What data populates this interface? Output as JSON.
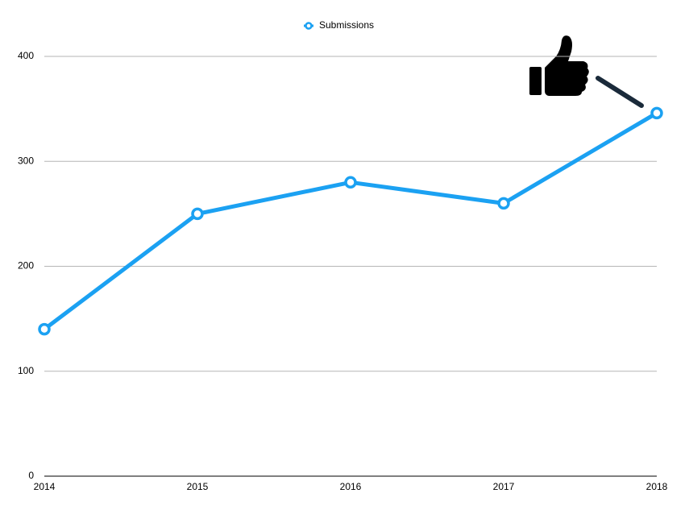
{
  "chart_data": {
    "type": "line",
    "categories": [
      "2014",
      "2015",
      "2016",
      "2017",
      "2018"
    ],
    "series": [
      {
        "name": "Submissions",
        "color": "#1ba1f2",
        "values": [
          140,
          250,
          280,
          260,
          346
        ]
      }
    ],
    "ylim": [
      0,
      400
    ],
    "yticks": [
      0,
      100,
      200,
      300,
      400
    ],
    "grid": true,
    "legend": "top"
  }
}
